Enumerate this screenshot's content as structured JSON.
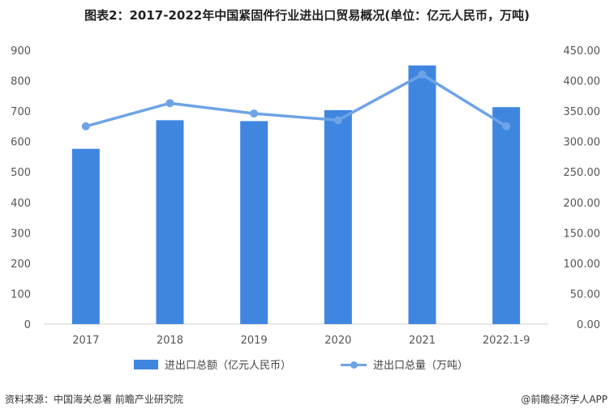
{
  "chart_data": {
    "type": "bar+line",
    "title": "图表2：2017-2022年中国紧固件行业进出口贸易概况(单位：亿元人民币，万吨)",
    "categories": [
      "2017",
      "2018",
      "2019",
      "2020",
      "2021",
      "2022.1-9"
    ],
    "series": [
      {
        "name": "进出口总额（亿元人民币）",
        "type": "bar",
        "axis": "left",
        "values": [
          576,
          670,
          667,
          703,
          850,
          713
        ],
        "color": "#3f86e0"
      },
      {
        "name": "进出口总量（万吨）",
        "type": "line",
        "axis": "right",
        "values": [
          325,
          363,
          346,
          335,
          410,
          325
        ],
        "color": "#6ea3e6"
      }
    ],
    "y_left": {
      "min": 0,
      "max": 900,
      "ticks": [
        "0",
        "100",
        "200",
        "300",
        "400",
        "500",
        "600",
        "700",
        "800",
        "900"
      ]
    },
    "y_right": {
      "min": 0,
      "max": 450,
      "ticks": [
        "0.00",
        "50.00",
        "100.00",
        "150.00",
        "200.00",
        "250.00",
        "300.00",
        "350.00",
        "400.00",
        "450.00"
      ]
    },
    "grid": false,
    "legend_position": "bottom"
  },
  "footer": {
    "source": "资料来源：中国海关总署 前瞻产业研究院",
    "brand": "@前瞻经济学人APP"
  }
}
